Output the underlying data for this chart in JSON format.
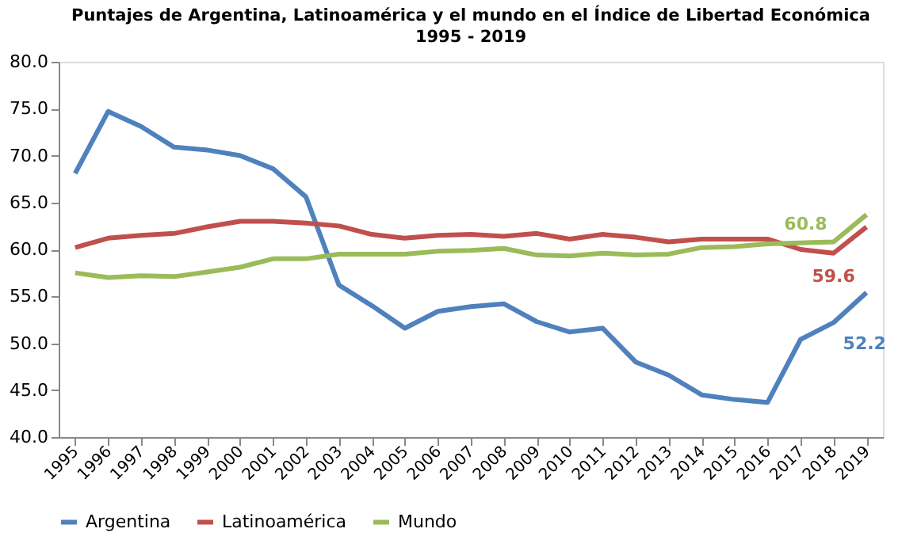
{
  "chart_data": {
    "type": "line",
    "title": "Puntajes de Argentina, Latinoamérica y el mundo en el Índice de Libertad Económica",
    "subtitle": "1995 - 2019",
    "categories": [
      "1995",
      "1996",
      "1997",
      "1998",
      "1999",
      "2000",
      "2001",
      "2002",
      "2003",
      "2004",
      "2005",
      "2006",
      "2007",
      "2008",
      "2009",
      "2010",
      "2011",
      "2012",
      "2013",
      "2014",
      "2015",
      "2016",
      "2017",
      "2018",
      "2019"
    ],
    "series": [
      {
        "name": "Argentina",
        "color": "#4f81bd",
        "values": [
          68.1,
          74.7,
          73.1,
          70.9,
          70.6,
          70.0,
          68.6,
          65.6,
          56.2,
          54.0,
          51.6,
          53.4,
          53.9,
          54.2,
          52.3,
          51.2,
          51.6,
          48.0,
          46.6,
          44.5,
          44.0,
          43.7,
          50.4,
          52.2,
          55.4
        ],
        "value_labels": [
          null,
          null,
          null,
          null,
          null,
          null,
          null,
          null,
          null,
          null,
          null,
          null,
          null,
          null,
          null,
          null,
          null,
          null,
          null,
          null,
          null,
          null,
          null,
          "52.2",
          null
        ]
      },
      {
        "name": "Latinoamérica",
        "color": "#c0504d",
        "values": [
          60.2,
          61.2,
          61.5,
          61.7,
          62.4,
          63.0,
          63.0,
          62.8,
          62.5,
          61.6,
          61.2,
          61.5,
          61.6,
          61.4,
          61.7,
          61.1,
          61.6,
          61.3,
          60.8,
          61.1,
          61.1,
          61.1,
          60.0,
          59.6,
          62.4
        ],
        "value_labels": [
          null,
          null,
          null,
          null,
          null,
          null,
          null,
          null,
          null,
          null,
          null,
          null,
          null,
          null,
          null,
          null,
          null,
          null,
          null,
          null,
          null,
          null,
          null,
          "59.6",
          null
        ]
      },
      {
        "name": "Mundo",
        "color": "#9bbb59",
        "values": [
          57.5,
          57.0,
          57.2,
          57.1,
          57.6,
          58.1,
          59.0,
          59.0,
          59.5,
          59.5,
          59.5,
          59.8,
          59.9,
          60.1,
          59.4,
          59.3,
          59.6,
          59.4,
          59.5,
          60.2,
          60.3,
          60.6,
          60.7,
          60.8,
          63.7
        ],
        "value_labels": [
          null,
          null,
          null,
          null,
          null,
          null,
          null,
          null,
          null,
          null,
          null,
          null,
          null,
          null,
          null,
          null,
          null,
          null,
          null,
          null,
          null,
          null,
          null,
          "60.8",
          null
        ]
      }
    ],
    "ylim": [
      40,
      80
    ],
    "yticks": [
      {
        "value": 40,
        "label": "40.0"
      },
      {
        "value": 45,
        "label": "45.0"
      },
      {
        "value": 50,
        "label": "50.0"
      },
      {
        "value": 55,
        "label": "55.0"
      },
      {
        "value": 60,
        "label": "60.0"
      },
      {
        "value": 65,
        "label": "65.0"
      },
      {
        "value": 70,
        "label": "70.0"
      },
      {
        "value": 75,
        "label": "75.0"
      },
      {
        "value": 80,
        "label": "80.0"
      }
    ],
    "grid": false,
    "legend": "bottom",
    "marker": "none",
    "line_style": "solid"
  }
}
